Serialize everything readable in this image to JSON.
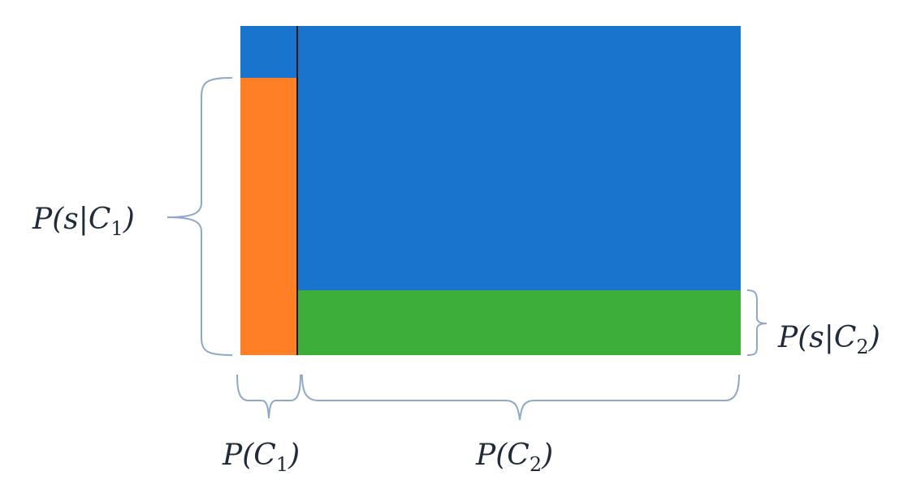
{
  "labels": {
    "p_s_given_c1": {
      "prefix": "P(s|C",
      "sub": "1",
      "suffix": ")"
    },
    "p_s_given_c2": {
      "prefix": "P(s|C",
      "sub": "2",
      "suffix": ")"
    },
    "p_c1": {
      "prefix": "P(C",
      "sub": "1",
      "suffix": ")"
    },
    "p_c2": {
      "prefix": "P(C",
      "sub": "2",
      "suffix": ")"
    }
  },
  "colors": {
    "background_region": "#1874CD",
    "c1_region": "#FF7F27",
    "c2_region": "#3EAE3A",
    "divider": "#1a1a1a",
    "brace": "#8FA8C8"
  }
}
